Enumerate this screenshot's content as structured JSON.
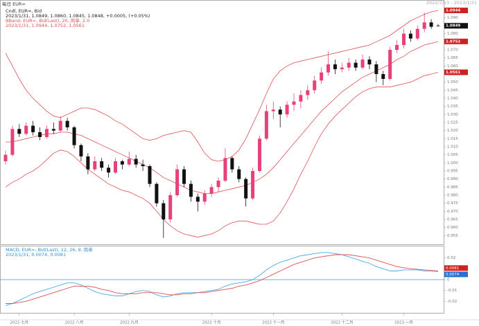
{
  "chart_data": [
    {
      "type": "candlestick",
      "title": "每日 EUR=",
      "top_right": "2022/7/13 - 2023/1/31",
      "legend_lines": [
        {
          "text": "Cndl, EUR=, Bid",
          "color": "#222"
        },
        {
          "text": "2023/1/31, 1.0849, 1.0860, 1.0845, 1.0848, +0.0005, (+0.05%)",
          "color": "#222"
        },
        {
          "text": "BBand, EUR=, Bid(Last), 20, 简单, 2.0",
          "color": "#e05050"
        },
        {
          "text": "2023/1/31, 1.0944, 1.0752, 1.0561",
          "color": "#e05050"
        }
      ],
      "categories": [
        null,
        null,
        "2022 七月",
        null,
        null,
        null,
        null,
        null,
        null,
        null,
        "2022 八月",
        null,
        null,
        null,
        null,
        null,
        null,
        null,
        "2022 九月",
        null,
        null,
        null,
        null,
        null,
        null,
        null,
        null,
        null,
        null,
        null,
        "2022 十月",
        null,
        null,
        null,
        null,
        null,
        null,
        null,
        null,
        "2022 十一月",
        null,
        null,
        null,
        null,
        null,
        null,
        null,
        null,
        null,
        "2022 十二月",
        null,
        null,
        null,
        null,
        null,
        null,
        null,
        null,
        "2023 一月",
        null,
        null,
        null,
        null,
        null
      ],
      "up_color": "#e8407a",
      "down_color": "#111111",
      "ohlc": [
        [
          1.001,
          1.0075,
          0.999,
          1.005
        ],
        [
          1.005,
          1.023,
          1.004,
          1.021
        ],
        [
          1.021,
          1.024,
          1.016,
          1.018
        ],
        [
          1.018,
          1.025,
          1.017,
          1.023
        ],
        [
          1.023,
          1.026,
          1.017,
          1.019
        ],
        [
          1.019,
          1.022,
          1.014,
          1.016
        ],
        [
          1.016,
          1.023,
          1.015,
          1.021
        ],
        [
          1.021,
          1.025,
          1.018,
          1.02
        ],
        [
          1.02,
          1.029,
          1.019,
          1.026
        ],
        [
          1.026,
          1.028,
          1.02,
          1.022
        ],
        [
          1.022,
          1.023,
          1.009,
          1.011
        ],
        [
          1.011,
          1.012,
          1.001,
          1.004
        ],
        [
          1.004,
          1.006,
          0.993,
          0.996
        ],
        [
          0.996,
          1.004,
          0.995,
          1.001
        ],
        [
          1.001,
          1.003,
          0.995,
          0.997
        ],
        [
          0.997,
          0.999,
          0.991,
          0.994
        ],
        [
          0.994,
          1.003,
          0.993,
          1.001
        ],
        [
          1.001,
          1.002,
          0.996,
          0.999
        ],
        [
          0.999,
          1.007,
          0.998,
          1.0025
        ],
        [
          1.0025,
          1.005,
          0.997,
          0.999
        ],
        [
          0.999,
          1.002,
          0.995,
          0.998
        ],
        [
          0.998,
          0.999,
          0.985,
          0.987
        ],
        [
          0.987,
          0.988,
          0.973,
          0.975
        ],
        [
          0.975,
          0.977,
          0.9535,
          0.965
        ],
        [
          0.965,
          0.982,
          0.963,
          0.98
        ],
        [
          0.98,
          0.999,
          0.979,
          0.996
        ],
        [
          0.996,
          0.998,
          0.985,
          0.987
        ],
        [
          0.987,
          0.989,
          0.976,
          0.979
        ],
        [
          0.979,
          0.981,
          0.97,
          0.976
        ],
        [
          0.976,
          0.983,
          0.974,
          0.981
        ],
        [
          0.981,
          0.987,
          0.979,
          0.985
        ],
        [
          0.985,
          0.991,
          0.982,
          0.989
        ],
        [
          0.989,
          1.009,
          0.988,
          1.003
        ],
        [
          1.003,
          1.004,
          0.994,
          0.996
        ],
        [
          0.996,
          0.998,
          0.988,
          0.99
        ],
        [
          0.99,
          0.991,
          0.973,
          0.978
        ],
        [
          0.978,
          0.997,
          0.977,
          0.995
        ],
        [
          0.995,
          1.017,
          0.994,
          1.015
        ],
        [
          1.015,
          1.036,
          1.014,
          1.032
        ],
        [
          1.032,
          1.038,
          1.027,
          1.033
        ],
        [
          1.033,
          1.035,
          1.022,
          1.03
        ],
        [
          1.03,
          1.038,
          1.028,
          1.036
        ],
        [
          1.036,
          1.043,
          1.032,
          1.038
        ],
        [
          1.038,
          1.045,
          1.034,
          1.042
        ],
        [
          1.042,
          1.048,
          1.039,
          1.045
        ],
        [
          1.045,
          1.054,
          1.043,
          1.051
        ],
        [
          1.051,
          1.059,
          1.049,
          1.056
        ],
        [
          1.056,
          1.069,
          1.054,
          1.061
        ],
        [
          1.061,
          1.064,
          1.055,
          1.058
        ],
        [
          1.058,
          1.062,
          1.056,
          1.059
        ],
        [
          1.059,
          1.065,
          1.057,
          1.062
        ],
        [
          1.062,
          1.064,
          1.057,
          1.059
        ],
        [
          1.059,
          1.067,
          1.058,
          1.064
        ],
        [
          1.064,
          1.066,
          1.058,
          1.061
        ],
        [
          1.061,
          1.063,
          1.05,
          1.055
        ],
        [
          1.055,
          1.057,
          1.048,
          1.052
        ],
        [
          1.052,
          1.072,
          1.051,
          1.07
        ],
        [
          1.07,
          1.076,
          1.068,
          1.073
        ],
        [
          1.073,
          1.083,
          1.071,
          1.08
        ],
        [
          1.08,
          1.082,
          1.075,
          1.077
        ],
        [
          1.077,
          1.085,
          1.076,
          1.083
        ],
        [
          1.083,
          1.093,
          1.081,
          1.087
        ],
        [
          1.087,
          1.089,
          1.083,
          1.0843
        ],
        [
          1.0849,
          1.086,
          1.0845,
          1.0848
        ]
      ],
      "bands": {
        "color": "#e05050",
        "upper": [
          1.068,
          1.06,
          1.052,
          1.045,
          1.04,
          1.036,
          1.032,
          1.029,
          1.028,
          1.03,
          1.032,
          1.034,
          1.034,
          1.033,
          1.031,
          1.029,
          1.026,
          1.024,
          1.021,
          1.018,
          1.015,
          1.014,
          1.015,
          1.017,
          1.018,
          1.019,
          1.02,
          1.019,
          1.013,
          1.006,
          1.002,
          1.001,
          1.002,
          1.004,
          1.008,
          1.015,
          1.024,
          1.033,
          1.043,
          1.052,
          1.057,
          1.06,
          1.062,
          1.063,
          1.064,
          1.065,
          1.066,
          1.067,
          1.068,
          1.069,
          1.07,
          1.071,
          1.072,
          1.073,
          1.075,
          1.077,
          1.079,
          1.082,
          1.085,
          1.088,
          1.09,
          1.092,
          1.0935,
          1.0944
        ],
        "middle": [
          1.013,
          1.013,
          1.014,
          1.015,
          1.016,
          1.017,
          1.018,
          1.018,
          1.019,
          1.019,
          1.018,
          1.017,
          1.015,
          1.013,
          1.011,
          1.009,
          1.007,
          1.005,
          1.003,
          1.001,
          0.999,
          0.997,
          0.994,
          0.991,
          0.989,
          0.987,
          0.985,
          0.983,
          0.982,
          0.981,
          0.981,
          0.982,
          0.983,
          0.984,
          0.985,
          0.986,
          0.988,
          0.99,
          0.993,
          0.997,
          1.002,
          1.007,
          1.012,
          1.017,
          1.022,
          1.027,
          1.032,
          1.036,
          1.04,
          1.044,
          1.047,
          1.05,
          1.053,
          1.055,
          1.057,
          1.059,
          1.061,
          1.064,
          1.066,
          1.069,
          1.071,
          1.073,
          1.074,
          1.0752
        ],
        "lower": [
          0.985,
          0.988,
          0.99,
          0.993,
          0.995,
          0.998,
          1.002,
          1.006,
          1.008,
          1.007,
          1.004,
          1.0,
          0.996,
          0.993,
          0.99,
          0.987,
          0.985,
          0.983,
          0.982,
          0.98,
          0.978,
          0.975,
          0.97,
          0.965,
          0.961,
          0.958,
          0.956,
          0.955,
          0.954,
          0.955,
          0.956,
          0.958,
          0.961,
          0.963,
          0.964,
          0.964,
          0.963,
          0.962,
          0.962,
          0.964,
          0.969,
          0.976,
          0.984,
          0.993,
          1.001,
          1.01,
          1.018,
          1.024,
          1.029,
          1.033,
          1.037,
          1.041,
          1.044,
          1.046,
          1.047,
          1.047,
          1.047,
          1.048,
          1.049,
          1.05,
          1.052,
          1.054,
          1.055,
          1.0561
        ]
      },
      "price_flags": [
        {
          "value": 1.0944,
          "color": "#d02020"
        },
        {
          "value": 1.0849,
          "color": "#111111"
        },
        {
          "value": 1.0752,
          "color": "#d02020"
        },
        {
          "value": 1.0561,
          "color": "#d02020"
        }
      ],
      "ylim": [
        0.95,
        1.1
      ],
      "yticks": [
        0.955,
        {
          "value": 0.96,
          "label": "0.960"
        },
        0.965,
        {
          "value": 0.97,
          "label": "0.970"
        },
        0.975,
        {
          "value": 0.98,
          "label": "0.980"
        },
        0.985,
        {
          "value": 0.99,
          "label": "0.990"
        },
        0.995,
        {
          "value": 1,
          "label": "1.000"
        },
        1.005,
        {
          "value": 1.01,
          "label": "1.010"
        },
        1.015,
        {
          "value": 1.02,
          "label": "1.020"
        },
        1.025,
        {
          "value": 1.03,
          "label": "1.030"
        },
        1.035,
        {
          "value": 1.04,
          "label": "1.040"
        },
        1.045,
        {
          "value": 1.05,
          "label": "1.050"
        },
        1.055,
        {
          "value": 1.06,
          "label": "1.060"
        },
        1.065,
        {
          "value": 1.07,
          "label": "1.070"
        },
        1.075,
        {
          "value": 1.08,
          "label": "1.080"
        },
        1.085,
        {
          "value": 1.09,
          "label": "1.090"
        },
        1.095
      ]
    },
    {
      "type": "line",
      "legend_lines": [
        {
          "text": "MACD, EUR=, Bid(Last), 12, 26, 9, 简单",
          "color": "#2a8fd8"
        },
        {
          "text": "2023/1/31, 0.0074, 0.0081",
          "color": "#2a8fd8"
        }
      ],
      "zero_line_color": "#58b8e8",
      "series": [
        {
          "color": "#4aa8e8",
          "values": [
            -0.024,
            -0.022,
            -0.019,
            -0.016,
            -0.013,
            -0.011,
            -0.009,
            -0.007,
            -0.005,
            -0.003,
            -0.003,
            -0.005,
            -0.008,
            -0.011,
            -0.013,
            -0.014,
            -0.015,
            -0.015,
            -0.013,
            -0.011,
            -0.01,
            -0.011,
            -0.014,
            -0.016,
            -0.015,
            -0.013,
            -0.012,
            -0.012,
            -0.012,
            -0.011,
            -0.01,
            -0.009,
            -0.006,
            -0.004,
            -0.003,
            -0.002,
            0.0,
            0.004,
            0.009,
            0.013,
            0.016,
            0.018,
            0.02,
            0.022,
            0.023,
            0.024,
            0.025,
            0.025,
            0.024,
            0.023,
            0.021,
            0.019,
            0.017,
            0.015,
            0.012,
            0.01,
            0.008,
            0.008,
            0.009,
            0.009,
            0.009,
            0.008,
            0.0078,
            0.0074
          ]
        },
        {
          "color": "#e05050",
          "values": [
            -0.022,
            -0.022,
            -0.021,
            -0.02,
            -0.018,
            -0.016,
            -0.014,
            -0.012,
            -0.01,
            -0.008,
            -0.006,
            -0.006,
            -0.006,
            -0.007,
            -0.009,
            -0.01,
            -0.012,
            -0.013,
            -0.013,
            -0.013,
            -0.012,
            -0.012,
            -0.012,
            -0.013,
            -0.014,
            -0.014,
            -0.013,
            -0.013,
            -0.012,
            -0.012,
            -0.011,
            -0.01,
            -0.009,
            -0.008,
            -0.006,
            -0.005,
            -0.003,
            -0.001,
            0.002,
            0.005,
            0.008,
            0.011,
            0.014,
            0.016,
            0.018,
            0.02,
            0.021,
            0.022,
            0.023,
            0.023,
            0.023,
            0.022,
            0.021,
            0.02,
            0.018,
            0.016,
            0.014,
            0.012,
            0.011,
            0.01,
            0.0095,
            0.009,
            0.0085,
            0.0081
          ]
        }
      ],
      "flags": [
        {
          "value": 0.0081,
          "color": "#d02020"
        },
        {
          "value": 0.0074,
          "color": "#2a6fd8"
        }
      ],
      "ylim": [
        -0.03,
        0.03
      ],
      "yticks": [
        -0.02,
        -0.01,
        0,
        0.01,
        0.02
      ]
    }
  ]
}
